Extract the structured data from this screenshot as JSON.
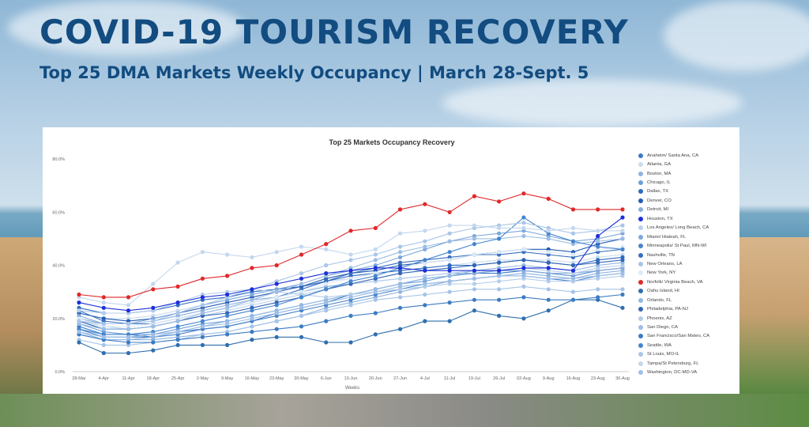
{
  "header": {
    "title": "COVID-19 TOURISM RECOVERY",
    "subtitle": "Top 25 DMA Markets Weekly Occupancy | March 28-Sept. 5"
  },
  "colors": {
    "title": "#124c80",
    "highlight_norfolk": "#e0282a",
    "highlight_houston": "#1d2fd8"
  },
  "chart_data": {
    "type": "line",
    "title": "Top 25 Markets Occupancy Recovery",
    "xlabel": "Weeks",
    "ylabel": "",
    "ylim": [
      0,
      80
    ],
    "yticks": [
      "0.0%",
      "20.0%",
      "40.0%",
      "60.0%",
      "80.0%"
    ],
    "grid": false,
    "legend_position": "right",
    "categories": [
      "28-Mar",
      "4-Apr",
      "11-Apr",
      "18-Apr",
      "25-Apr",
      "2-May",
      "9-May",
      "16-May",
      "23-May",
      "30-May",
      "6-Jun",
      "13-Jun",
      "20-Jun",
      "27-Jun",
      "4-Jul",
      "11-Jul",
      "19-Jul",
      "26-Jul",
      "02-Aug",
      "9-Aug",
      "16-Aug",
      "23-Aug",
      "30-Aug"
    ],
    "series": [
      {
        "name": "Anaheim/ Santa Ana, CA",
        "color": "#3a78c9",
        "values": [
          17,
          14,
          14,
          13,
          15,
          16,
          17,
          19,
          22,
          24,
          26,
          29,
          31,
          33,
          35,
          36,
          37,
          37,
          38,
          37,
          36,
          38,
          39
        ]
      },
      {
        "name": "Atlanta, GA",
        "color": "#c9dcef",
        "values": [
          22,
          20,
          20,
          21,
          23,
          25,
          27,
          29,
          31,
          32,
          34,
          35,
          37,
          38,
          39,
          40,
          41,
          42,
          42,
          42,
          41,
          43,
          44
        ]
      },
      {
        "name": "Boston, MA",
        "color": "#8fb4df",
        "values": [
          15,
          12,
          12,
          12,
          13,
          14,
          15,
          17,
          19,
          21,
          24,
          26,
          28,
          30,
          32,
          34,
          35,
          36,
          37,
          36,
          35,
          37,
          38
        ]
      },
      {
        "name": "Chicago, IL",
        "color": "#6d9fd8",
        "values": [
          18,
          15,
          14,
          14,
          16,
          18,
          19,
          21,
          23,
          25,
          27,
          29,
          31,
          33,
          34,
          36,
          37,
          38,
          38,
          37,
          36,
          38,
          39
        ]
      },
      {
        "name": "Dallas, TX",
        "color": "#2f6bc2",
        "values": [
          24,
          22,
          22,
          23,
          25,
          27,
          28,
          30,
          31,
          32,
          34,
          36,
          37,
          38,
          39,
          40,
          40,
          41,
          42,
          41,
          40,
          42,
          43
        ]
      },
      {
        "name": "Denver, CO",
        "color": "#245bb3",
        "values": [
          22,
          20,
          19,
          20,
          22,
          24,
          26,
          28,
          30,
          32,
          35,
          37,
          38,
          40,
          41,
          42,
          44,
          45,
          46,
          46,
          45,
          48,
          50
        ]
      },
      {
        "name": "Detroit, MI",
        "color": "#8aaedc",
        "values": [
          20,
          18,
          18,
          19,
          21,
          23,
          25,
          27,
          28,
          30,
          32,
          33,
          34,
          35,
          36,
          37,
          37,
          38,
          38,
          37,
          37,
          38,
          39
        ]
      },
      {
        "name": "Houston, TX",
        "color": "#1d2fd8",
        "values": [
          26,
          24,
          23,
          24,
          26,
          28,
          29,
          31,
          33,
          35,
          37,
          38,
          39,
          39,
          38,
          38,
          38,
          38,
          39,
          39,
          38,
          51,
          58
        ]
      },
      {
        "name": "Los Angeles/ Long Beach, CA",
        "color": "#b8d0ec",
        "values": [
          19,
          17,
          16,
          17,
          19,
          21,
          23,
          25,
          27,
          29,
          31,
          33,
          34,
          35,
          36,
          37,
          38,
          38,
          39,
          38,
          37,
          39,
          40
        ]
      },
      {
        "name": "Miami/ Hialeah, FL",
        "color": "#7ea8dc",
        "values": [
          21,
          18,
          18,
          20,
          22,
          25,
          27,
          29,
          31,
          33,
          36,
          38,
          40,
          43,
          46,
          49,
          51,
          52,
          53,
          51,
          49,
          50,
          52
        ]
      },
      {
        "name": "Minneapolis/ St Paul, MN-WI",
        "color": "#4a84cc",
        "values": [
          16,
          13,
          13,
          13,
          14,
          16,
          17,
          19,
          21,
          23,
          25,
          27,
          29,
          31,
          33,
          34,
          35,
          36,
          36,
          35,
          34,
          36,
          37
        ]
      },
      {
        "name": "Nashville, TN",
        "color": "#3970bf",
        "values": [
          23,
          19,
          18,
          18,
          20,
          22,
          24,
          26,
          28,
          31,
          34,
          37,
          39,
          41,
          42,
          43,
          44,
          44,
          45,
          44,
          43,
          45,
          46
        ]
      },
      {
        "name": "New Orleans, LA",
        "color": "#a6c4e8",
        "values": [
          12,
          10,
          10,
          11,
          12,
          14,
          15,
          17,
          19,
          21,
          23,
          25,
          27,
          28,
          29,
          30,
          31,
          31,
          32,
          31,
          30,
          31,
          31
        ]
      },
      {
        "name": "New York, NY",
        "color": "#ddeaf6",
        "values": [
          20,
          17,
          17,
          18,
          20,
          22,
          24,
          26,
          28,
          30,
          33,
          35,
          37,
          39,
          41,
          42,
          44,
          45,
          46,
          45,
          44,
          46,
          47
        ]
      },
      {
        "name": "Norfolk/ Virginia Beach, VA",
        "color": "#e0282a",
        "values": [
          29,
          28,
          28,
          31,
          32,
          35,
          36,
          39,
          40,
          44,
          48,
          53,
          54,
          61,
          63,
          60,
          66,
          64,
          67,
          65,
          61,
          61,
          61
        ]
      },
      {
        "name": "Oahu Island, HI",
        "color": "#2f6fad",
        "values": [
          11,
          7,
          7,
          8,
          10,
          10,
          10,
          12,
          13,
          13,
          11,
          11,
          14,
          16,
          19,
          19,
          23,
          21,
          20,
          23,
          27,
          27,
          24
        ]
      },
      {
        "name": "Orlando, FL",
        "color": "#94b8e2",
        "values": [
          14,
          12,
          12,
          13,
          15,
          17,
          19,
          21,
          23,
          25,
          27,
          29,
          31,
          33,
          35,
          36,
          38,
          39,
          40,
          39,
          38,
          40,
          41
        ]
      },
      {
        "name": "Philadelphia, PA-NJ",
        "color": "#3266b5",
        "values": [
          19,
          16,
          16,
          17,
          19,
          21,
          22,
          24,
          26,
          28,
          31,
          33,
          35,
          37,
          38,
          39,
          40,
          41,
          42,
          41,
          40,
          41,
          42
        ]
      },
      {
        "name": "Phoenix, AZ",
        "color": "#b4cdea",
        "values": [
          23,
          22,
          22,
          23,
          26,
          29,
          30,
          31,
          30,
          29,
          28,
          29,
          30,
          31,
          32,
          33,
          33,
          34,
          35,
          34,
          34,
          35,
          36
        ]
      },
      {
        "name": "San Diego, CA",
        "color": "#9cbde4",
        "values": [
          18,
          16,
          16,
          17,
          19,
          22,
          24,
          27,
          30,
          33,
          36,
          39,
          42,
          45,
          47,
          49,
          50,
          50,
          51,
          50,
          48,
          49,
          50
        ]
      },
      {
        "name": "San Francisco/San Mateo, CA",
        "color": "#3c7cc2",
        "values": [
          14,
          12,
          11,
          11,
          12,
          13,
          14,
          15,
          16,
          17,
          19,
          21,
          22,
          24,
          25,
          26,
          27,
          27,
          28,
          27,
          27,
          28,
          29
        ]
      },
      {
        "name": "Seattle, WA",
        "color": "#4585cf",
        "values": [
          16,
          14,
          14,
          15,
          17,
          19,
          21,
          23,
          25,
          28,
          31,
          34,
          36,
          39,
          42,
          45,
          48,
          50,
          58,
          52,
          49,
          47,
          46
        ]
      },
      {
        "name": "St Louis, MO-IL",
        "color": "#a9c6e8",
        "values": [
          19,
          18,
          18,
          19,
          22,
          25,
          28,
          31,
          34,
          37,
          40,
          42,
          44,
          47,
          49,
          52,
          54,
          55,
          56,
          54,
          52,
          53,
          55
        ]
      },
      {
        "name": "Tampa/St Petersburg, FL",
        "color": "#c3d7ee",
        "values": [
          28,
          26,
          25,
          33,
          41,
          45,
          44,
          43,
          45,
          47,
          46,
          44,
          46,
          52,
          53,
          55,
          55,
          54,
          54,
          53,
          54,
          53,
          53
        ]
      },
      {
        "name": "Washington, DC-MD-VA",
        "color": "#a0bfe6",
        "values": [
          15,
          13,
          13,
          14,
          15,
          17,
          18,
          20,
          22,
          24,
          26,
          28,
          30,
          32,
          33,
          34,
          35,
          36,
          36,
          35,
          35,
          36,
          37
        ]
      }
    ]
  }
}
